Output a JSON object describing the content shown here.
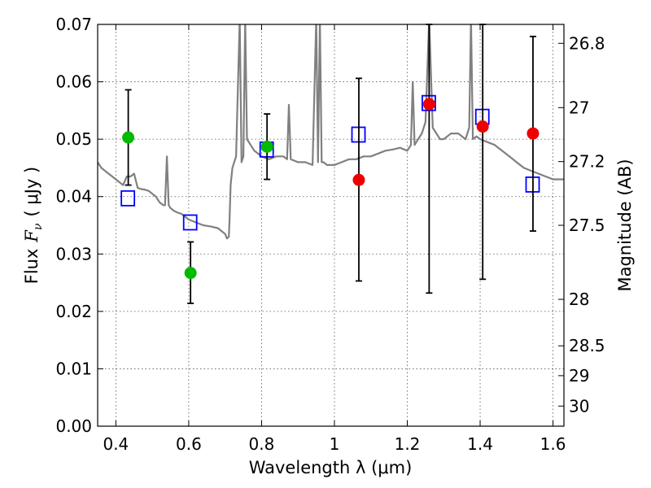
{
  "chart_data": {
    "type": "scatter",
    "title": "",
    "xlabel": "Wavelength  λ (μm)",
    "ylabel": {
      "prefix": "Flux",
      "symbol": "F",
      "subscript": "ν",
      "unit": "( μJy )"
    },
    "y2label": "Magnitude (AB)",
    "xlim": [
      0.35,
      1.63
    ],
    "ylim": [
      0.0,
      0.07
    ],
    "grid": true,
    "xticks": [
      {
        "value": 0.4,
        "label": "0.4"
      },
      {
        "value": 0.6,
        "label": "0.6"
      },
      {
        "value": 0.8,
        "label": "0.8"
      },
      {
        "value": 1.0,
        "label": "1"
      },
      {
        "value": 1.2,
        "label": "1.2"
      },
      {
        "value": 1.4,
        "label": "1.4"
      },
      {
        "value": 1.6,
        "label": "1.6"
      }
    ],
    "yticks": [
      {
        "value": 0.0,
        "label": "0.00"
      },
      {
        "value": 0.01,
        "label": "0.01"
      },
      {
        "value": 0.02,
        "label": "0.02"
      },
      {
        "value": 0.03,
        "label": "0.03"
      },
      {
        "value": 0.04,
        "label": "0.04"
      },
      {
        "value": 0.05,
        "label": "0.05"
      },
      {
        "value": 0.06,
        "label": "0.06"
      },
      {
        "value": 0.07,
        "label": "0.07"
      }
    ],
    "y2ticks": [
      {
        "flux": 0.0667,
        "label": "26.8"
      },
      {
        "flux": 0.0555,
        "label": "27"
      },
      {
        "flux": 0.0461,
        "label": "27.2"
      },
      {
        "flux": 0.035,
        "label": "27.5"
      },
      {
        "flux": 0.0221,
        "label": "28"
      },
      {
        "flux": 0.014,
        "label": "28.5"
      },
      {
        "flux": 0.0088,
        "label": "29"
      },
      {
        "flux": 0.0035,
        "label": "30"
      }
    ],
    "series": [
      {
        "kind": "spectrum",
        "color": "#808080",
        "x": [
          0.35,
          0.36,
          0.37,
          0.38,
          0.39,
          0.4,
          0.41,
          0.42,
          0.43,
          0.44,
          0.45,
          0.46,
          0.47,
          0.48,
          0.49,
          0.5,
          0.51,
          0.52,
          0.53,
          0.535,
          0.54,
          0.545,
          0.55,
          0.56,
          0.57,
          0.58,
          0.59,
          0.6,
          0.62,
          0.64,
          0.66,
          0.68,
          0.69,
          0.7,
          0.705,
          0.71,
          0.712,
          0.715,
          0.72,
          0.73,
          0.74,
          0.745,
          0.75,
          0.755,
          0.76,
          0.77,
          0.78,
          0.8,
          0.82,
          0.84,
          0.86,
          0.87,
          0.875,
          0.88,
          0.9,
          0.92,
          0.94,
          0.95,
          0.955,
          0.96,
          0.965,
          0.97,
          0.98,
          1.0,
          1.02,
          1.04,
          1.06,
          1.08,
          1.1,
          1.12,
          1.14,
          1.16,
          1.18,
          1.2,
          1.21,
          1.215,
          1.22,
          1.23,
          1.24,
          1.25,
          1.26,
          1.27,
          1.28,
          1.29,
          1.3,
          1.32,
          1.34,
          1.36,
          1.37,
          1.375,
          1.38,
          1.39,
          1.4,
          1.42,
          1.44,
          1.46,
          1.48,
          1.5,
          1.52,
          1.54,
          1.56,
          1.58,
          1.6,
          1.62,
          1.63
        ],
        "y": [
          0.046,
          0.045,
          0.0445,
          0.044,
          0.0435,
          0.043,
          0.0425,
          0.042,
          0.0435,
          0.0435,
          0.044,
          0.0415,
          0.0413,
          0.0412,
          0.041,
          0.0405,
          0.04,
          0.039,
          0.0385,
          0.0385,
          0.047,
          0.0385,
          0.038,
          0.0375,
          0.0372,
          0.037,
          0.0365,
          0.036,
          0.0355,
          0.035,
          0.0348,
          0.0345,
          0.034,
          0.0335,
          0.0327,
          0.033,
          0.036,
          0.042,
          0.045,
          0.047,
          0.071,
          0.046,
          0.047,
          0.071,
          0.05,
          0.049,
          0.048,
          0.047,
          0.0465,
          0.047,
          0.047,
          0.0465,
          0.056,
          0.0465,
          0.046,
          0.046,
          0.0455,
          0.071,
          0.046,
          0.071,
          0.046,
          0.046,
          0.0455,
          0.0455,
          0.046,
          0.0465,
          0.0465,
          0.047,
          0.047,
          0.0475,
          0.048,
          0.0482,
          0.0485,
          0.048,
          0.049,
          0.06,
          0.049,
          0.05,
          0.051,
          0.053,
          0.071,
          0.052,
          0.051,
          0.05,
          0.05,
          0.051,
          0.051,
          0.05,
          0.052,
          0.071,
          0.05,
          0.0505,
          0.05,
          0.0495,
          0.049,
          0.048,
          0.047,
          0.046,
          0.045,
          0.0445,
          0.044,
          0.0435,
          0.043,
          0.043,
          0.043
        ]
      },
      {
        "kind": "squares",
        "color": "#0000ff",
        "x": [
          0.433,
          0.604,
          0.814,
          1.066,
          1.259,
          1.406,
          1.544
        ],
        "y": [
          0.0397,
          0.0355,
          0.0482,
          0.0508,
          0.0563,
          0.0539,
          0.0421
        ]
      },
      {
        "kind": "circles",
        "color": "#00bb00",
        "x": [
          0.434,
          0.605,
          0.815
        ],
        "y": [
          0.0503,
          0.0267,
          0.0487
        ],
        "yerr_lo": [
          0.042,
          0.0214,
          0.043
        ],
        "yerr_hi": [
          0.0586,
          0.0321,
          0.0544
        ]
      },
      {
        "kind": "circles",
        "color": "#ee0000",
        "x": [
          1.067,
          1.26,
          1.407,
          1.545
        ],
        "y": [
          0.0429,
          0.0561,
          0.0522,
          0.051
        ],
        "yerr_lo": [
          0.0253,
          0.0232,
          0.0256,
          0.034
        ],
        "yerr_hi": [
          0.0606,
          0.07,
          0.07,
          0.0679
        ]
      }
    ]
  }
}
